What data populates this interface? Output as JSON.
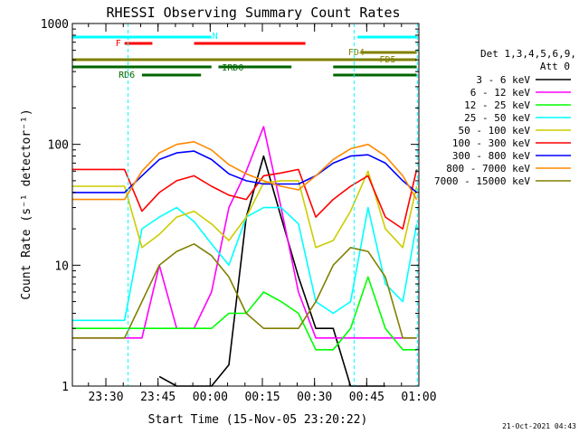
{
  "chart_data": {
    "type": "line",
    "title": "RHESSI Observing Summary Count Rates",
    "xlabel": "Start Time (15-Nov-05 23:20:22)",
    "ylabel": "Count Rate (s⁻¹ detector⁻¹)",
    "ylog": true,
    "ylim": [
      1,
      1000
    ],
    "xlim": [
      "23:20:22",
      "01:00:00"
    ],
    "x_ticks": [
      "23:30",
      "23:45",
      "00:00",
      "00:15",
      "00:30",
      "00:45",
      "01:00"
    ],
    "y_ticks": [
      "1",
      "10",
      "100",
      "1000"
    ],
    "grid": false,
    "legend_header": [
      "Det 1,3,4,5,6,9,",
      "Att 0"
    ],
    "legend_position": "right",
    "timestamp": "21-Oct-2021 04:43",
    "x_minutes_since_start": [
      0,
      5,
      10,
      15,
      20,
      25,
      30,
      35,
      40,
      45,
      50,
      55,
      60,
      65,
      70,
      75,
      80,
      85,
      90,
      95,
      99
    ],
    "series": [
      {
        "name": "3 - 6 keV",
        "color": "#000000",
        "values": [
          null,
          null,
          null,
          null,
          null,
          1.2,
          1,
          1,
          1,
          1.5,
          25,
          80,
          25,
          8,
          3,
          3,
          1,
          1,
          1,
          null,
          null
        ]
      },
      {
        "name": "6 - 12 keV",
        "color": "#ff00ff",
        "values": [
          2.5,
          2.5,
          2.5,
          2.5,
          2.5,
          10,
          3,
          3,
          6,
          30,
          60,
          140,
          30,
          6,
          2.5,
          2.5,
          2.5,
          2.5,
          2.5,
          2.5,
          2.5
        ]
      },
      {
        "name": "12 - 25 keV",
        "color": "#00ff00",
        "values": [
          3,
          3,
          3,
          3,
          3,
          3,
          3,
          3,
          3,
          4,
          4,
          6,
          5,
          4,
          2,
          2,
          3,
          8,
          3,
          2,
          2
        ]
      },
      {
        "name": "25 - 50 keV",
        "color": "#00ffff",
        "values": [
          3.5,
          3.5,
          3.5,
          3.5,
          20,
          25,
          30,
          23,
          15,
          10,
          25,
          30,
          30,
          22,
          5,
          4,
          5,
          30,
          7,
          5,
          22
        ]
      },
      {
        "name": "50 - 100 keV",
        "color": "#cccc00",
        "values": [
          45,
          45,
          45,
          45,
          14,
          18,
          25,
          28,
          22,
          16,
          25,
          48,
          50,
          50,
          14,
          16,
          28,
          60,
          20,
          14,
          45
        ]
      },
      {
        "name": "100 - 300 keV",
        "color": "#ff0000",
        "values": [
          62,
          62,
          62,
          62,
          28,
          40,
          50,
          55,
          45,
          38,
          35,
          55,
          58,
          62,
          25,
          35,
          45,
          55,
          25,
          20,
          62
        ]
      },
      {
        "name": "300 - 800 keV",
        "color": "#0000ff",
        "values": [
          40,
          40,
          40,
          40,
          55,
          75,
          85,
          88,
          75,
          57,
          50,
          47,
          47,
          47,
          55,
          70,
          80,
          82,
          70,
          50,
          40
        ]
      },
      {
        "name": "800 - 7000 keV",
        "color": "#ff8800",
        "values": [
          35,
          35,
          35,
          35,
          60,
          85,
          100,
          105,
          90,
          68,
          57,
          50,
          45,
          42,
          55,
          75,
          92,
          100,
          80,
          55,
          35
        ]
      },
      {
        "name": "7000 - 15000 keV",
        "color": "#808000",
        "values": [
          2.5,
          2.5,
          2.5,
          2.5,
          5,
          10,
          13,
          15,
          12,
          8,
          4,
          3,
          3,
          3,
          5,
          10,
          14,
          13,
          8,
          2.5,
          2.5
        ]
      }
    ],
    "flag_bars": [
      {
        "label": "N",
        "color": "#00ffff",
        "segments": [
          [
            0,
            40
          ],
          [
            82,
            99
          ]
        ]
      },
      {
        "label": "F",
        "color": "#ff0000",
        "segments": [
          [
            15,
            23
          ],
          [
            35,
            67
          ]
        ]
      },
      {
        "label": "FD4",
        "color": "#808000",
        "segments": [
          [
            0,
            99
          ]
        ]
      },
      {
        "label": "FD5",
        "color": "#808000",
        "segments": [
          [
            83,
            99
          ]
        ]
      },
      {
        "label": "IRD0",
        "color": "#006600",
        "segments": [
          [
            0,
            40
          ],
          [
            42,
            63
          ],
          [
            75,
            99
          ]
        ]
      },
      {
        "label": "RD6",
        "color": "#006600",
        "segments": [
          [
            20,
            37
          ],
          [
            75,
            99
          ]
        ]
      }
    ]
  }
}
